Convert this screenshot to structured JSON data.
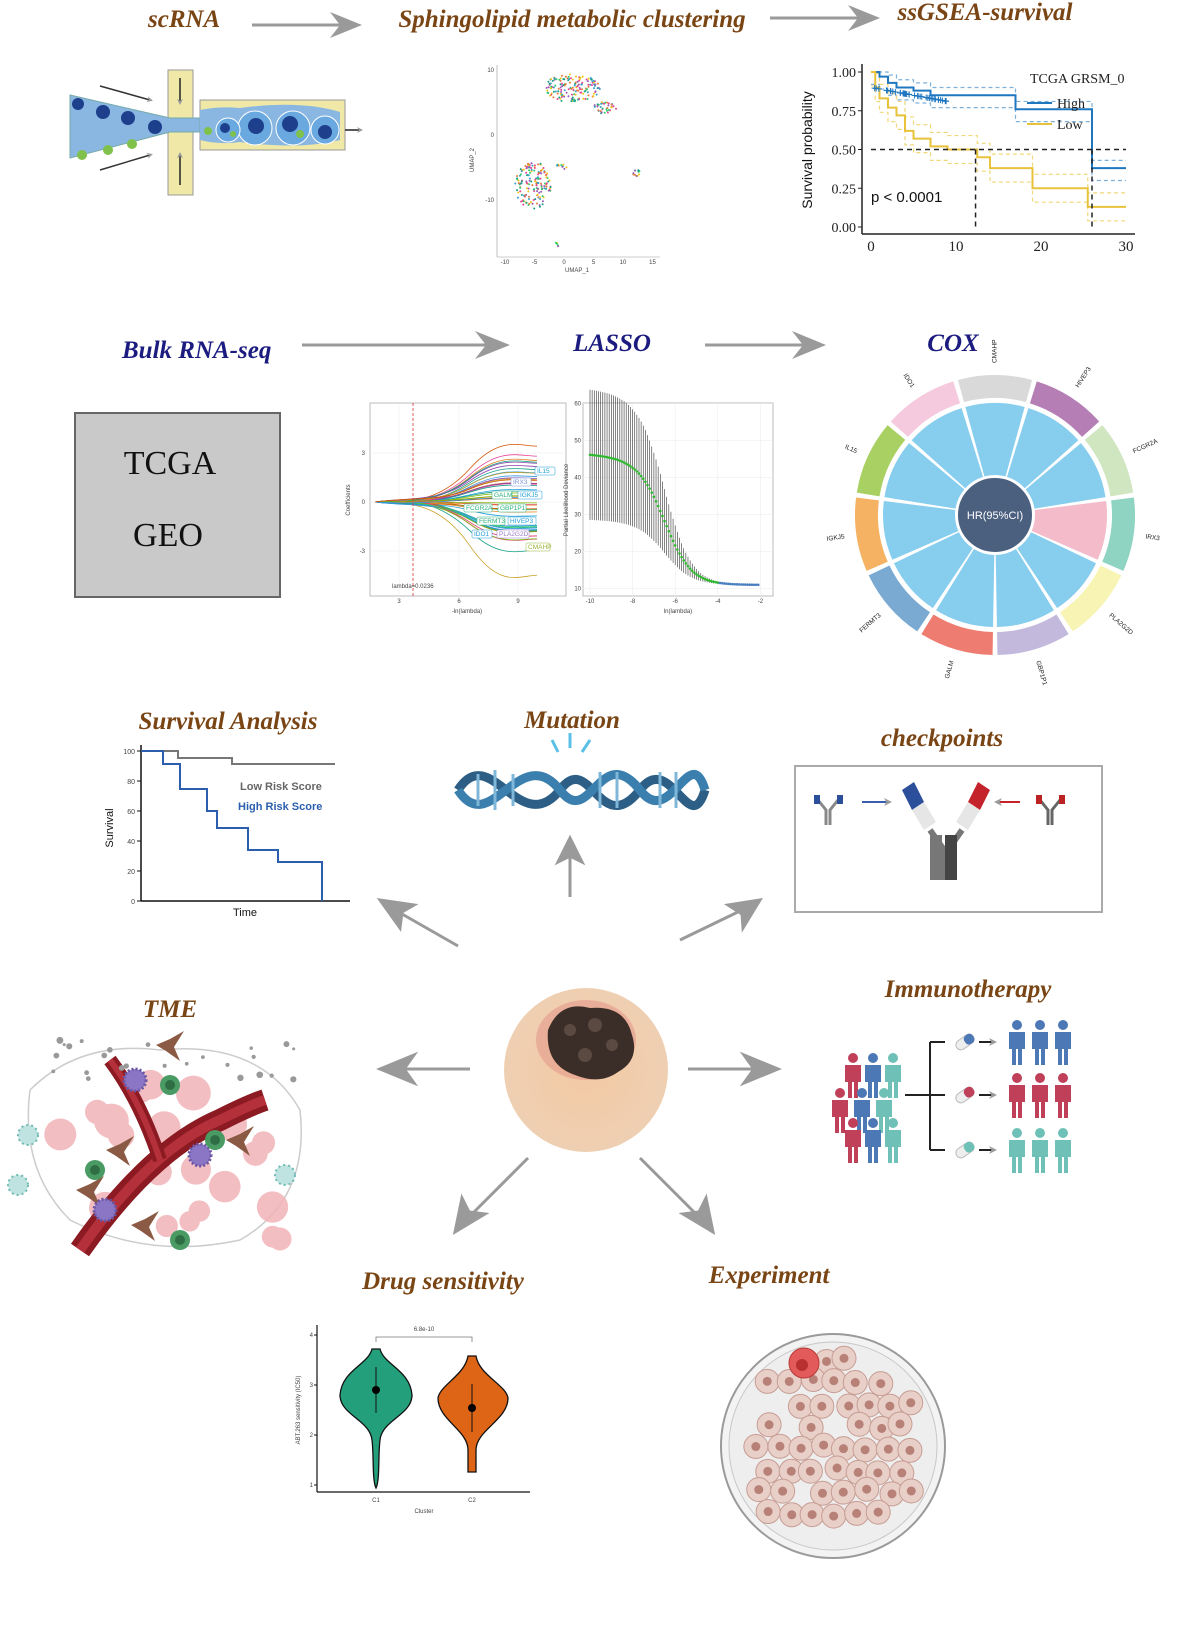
{
  "titles": {
    "scrna": "scRNA",
    "clustering": "Sphingolipid metabolic clustering",
    "ssgsea": "ssGSEA-survival",
    "bulk": "Bulk RNA-seq",
    "lasso": "LASSO",
    "cox": "COX",
    "survival": "Survival Analysis",
    "mutation": "Mutation",
    "checkpoints": "checkpoints",
    "tme": "TME",
    "immunotherapy": "Immunotherapy",
    "drug": "Drug sensitivity",
    "experiment": "Experiment"
  },
  "colors": {
    "title_brown": "#7a4514",
    "title_navy": "#1c1c80",
    "arrow": "#9a9a9a",
    "km_high": "#1f77c0",
    "km_low": "#e8c23a"
  },
  "umap": {
    "xlabel": "UMAP_1",
    "ylabel": "UMAP_2",
    "xticks": [
      "-10",
      "-5",
      "0",
      "5",
      "10",
      "15"
    ],
    "yticks": [
      "10",
      "0",
      "-10"
    ]
  },
  "km": {
    "ylabel": "Survival probability",
    "yticks": [
      "1.00",
      "0.75",
      "0.50",
      "0.25",
      "0.00"
    ],
    "xticks": [
      "0",
      "10",
      "20",
      "30"
    ],
    "legend_title": "TCGA GRSM_0",
    "legend": [
      "High",
      "Low"
    ],
    "pvalue": "p < 0.0001"
  },
  "bulk": {
    "sources": [
      "TCGA",
      "GEO"
    ]
  },
  "lasso": {
    "coef_ylabel": "Coefficients",
    "coef_xlabel": "-ln(lambda)",
    "coef_yticks": [
      "3",
      "0",
      "-3"
    ],
    "coef_xticks": [
      "3",
      "6",
      "9"
    ],
    "lambda": "lambda=0.0236",
    "genes": [
      "IL15",
      "IRX3",
      "GALM",
      "IGKJ5",
      "FCGR2A",
      "GBP1P1",
      "FERMT3",
      "HIVEP3",
      "IDO1",
      "PLA2G2D",
      "CMAHP"
    ],
    "cv_ylabel": "Partial Likelihood Deviance",
    "cv_xlabel": "ln(lambda)",
    "cv_yticks": [
      "60",
      "50",
      "40",
      "30",
      "20",
      "10"
    ],
    "cv_xticks": [
      "-10",
      "-8",
      "-6",
      "-4",
      "-2"
    ]
  },
  "cox": {
    "center": "HR(95%CI)",
    "genes": [
      {
        "name": "CMAHP",
        "color": "#d9d9d9"
      },
      {
        "name": "HIVEP3",
        "color": "#b57fb5"
      },
      {
        "name": "FCGR2A",
        "color": "#cfe6c0"
      },
      {
        "name": "IRX3",
        "color": "#8fd3c2"
      },
      {
        "name": "PLA2G2D",
        "color": "#f7f4b4"
      },
      {
        "name": "GBP1P1",
        "color": "#c2b9dd"
      },
      {
        "name": "GALM",
        "color": "#ee7c70"
      },
      {
        "name": "FERMT3",
        "color": "#7aaad2"
      },
      {
        "name": "IGKJ5",
        "color": "#f5b262"
      },
      {
        "name": "IL15",
        "color": "#a9d062"
      },
      {
        "name": "IDO1",
        "color": "#f5c9de"
      }
    ]
  },
  "survival_chart": {
    "ylabel": "Survival",
    "xlabel": "Time",
    "yticks": [
      "100",
      "80",
      "60",
      "40",
      "20",
      "0"
    ],
    "legend": [
      "Low Risk Score",
      "High Risk Score"
    ]
  },
  "drug": {
    "ylabel": "ABT.263 sensitivity (IC50)",
    "xlabel": "Cluster",
    "categories": [
      "C1",
      "C2"
    ],
    "yticks": [
      "4",
      "3",
      "2",
      "1"
    ],
    "pvalue": "6.8e-10"
  }
}
